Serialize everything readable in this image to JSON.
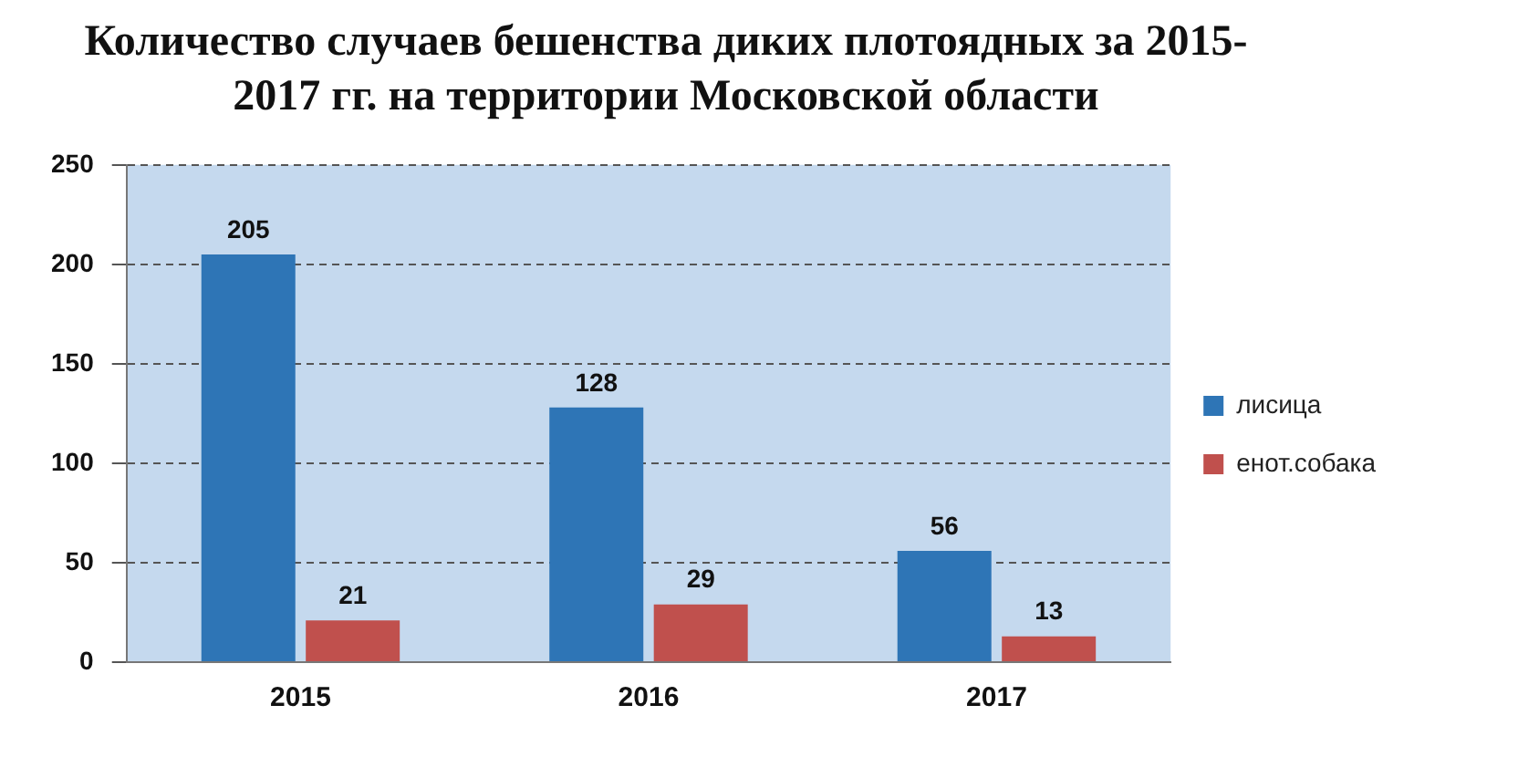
{
  "chart_data": {
    "type": "bar",
    "title": "Количество случаев бешенства диких плотоядных за 2015-2017 гг. на территории Московской области",
    "categories": [
      "2015",
      "2016",
      "2017"
    ],
    "series": [
      {
        "name": "лисица",
        "color": "#2e75b6",
        "values": [
          205,
          128,
          56
        ]
      },
      {
        "name": "енот.собака",
        "color": "#c0504d",
        "values": [
          21,
          29,
          13
        ]
      }
    ],
    "ylim": [
      0,
      250
    ],
    "yticks": [
      0,
      50,
      100,
      150,
      200,
      250
    ],
    "grid": "y",
    "legend": "right",
    "data_labels": true
  }
}
